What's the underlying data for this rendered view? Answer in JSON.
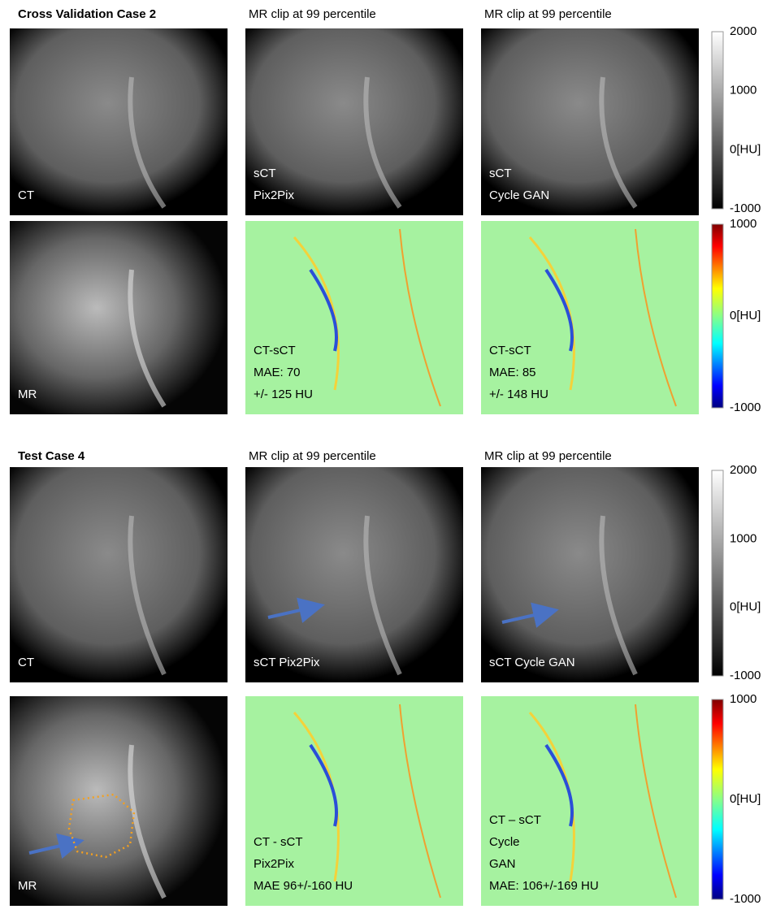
{
  "sections": [
    {
      "title": "Cross Validation Case 2",
      "headers": [
        "MR clip at 99 percentile",
        "MR clip at 99 percentile"
      ],
      "rows": [
        {
          "panels": [
            {
              "lines": [
                "CT"
              ]
            },
            {
              "lines": [
                "sCT",
                "Pix2Pix"
              ]
            },
            {
              "lines": [
                "sCT",
                "Cycle GAN"
              ]
            }
          ],
          "colorbar": [
            "2000",
            "1000",
            "0[HU]",
            "-1000"
          ]
        },
        {
          "panels": [
            {
              "lines": [
                "MR"
              ]
            },
            {
              "lines": [
                "CT-sCT",
                "MAE: 70",
                "+/- 125 HU"
              ]
            },
            {
              "lines": [
                "CT-sCT",
                "MAE: 85",
                "+/- 148 HU"
              ]
            }
          ],
          "colorbar": [
            "1000",
            "0[HU]",
            "-1000"
          ]
        }
      ]
    },
    {
      "title": "Test Case 4",
      "headers": [
        "MR clip at 99 percentile",
        "MR clip at 99 percentile"
      ],
      "rows": [
        {
          "panels": [
            {
              "lines": [
                "CT"
              ]
            },
            {
              "lines": [
                "sCT Pix2Pix"
              ]
            },
            {
              "lines": [
                "sCT Cycle GAN"
              ]
            }
          ],
          "colorbar": [
            "2000",
            "1000",
            "0[HU]",
            "-1000"
          ]
        },
        {
          "panels": [
            {
              "lines": [
                "MR"
              ]
            },
            {
              "lines": [
                "CT - sCT",
                "Pix2Pix",
                "MAE 96+/-160 HU"
              ]
            },
            {
              "lines": [
                "CT – sCT",
                "Cycle",
                "GAN",
                "MAE: 106+/-169 HU"
              ]
            }
          ],
          "colorbar": [
            "1000",
            "0[HU]",
            "-1000"
          ]
        }
      ]
    }
  ]
}
